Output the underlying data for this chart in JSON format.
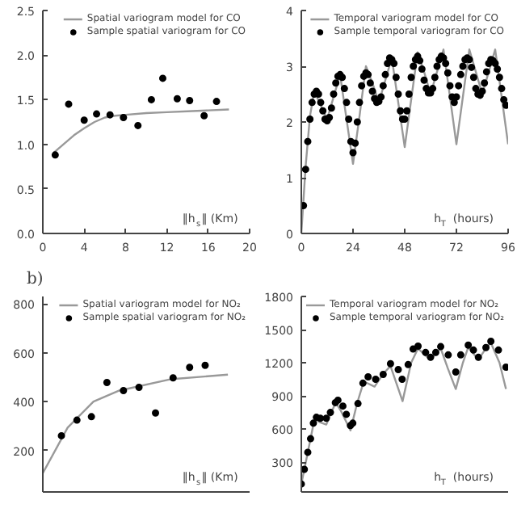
{
  "chart_data": [
    {
      "type": "scatter",
      "xlabel": "‖h$_{s}$‖ (Km)",
      "xlim": [
        0,
        20
      ],
      "xticks": [
        0,
        4,
        8,
        12,
        16,
        20
      ],
      "ylim": [
        0,
        2.5
      ],
      "yticks": [
        {
          "value": 0,
          "label": "0.0"
        },
        0.5,
        {
          "value": 1,
          "label": "1.0"
        },
        1.5,
        {
          "value": 2,
          "label": "2.0"
        },
        2.5
      ],
      "grid": false,
      "legend": "top",
      "marker": "circle",
      "series": [
        {
          "name": "Spatial variogram model for CO",
          "type": "line",
          "marker": "none",
          "color": "#999999",
          "x": [
            1,
            2,
            3,
            4,
            5,
            6,
            7,
            8,
            10,
            12,
            14,
            16,
            18
          ],
          "values": [
            0.9,
            1.0,
            1.1,
            1.18,
            1.25,
            1.3,
            1.32,
            1.33,
            1.35,
            1.36,
            1.37,
            1.38,
            1.39
          ]
        },
        {
          "name": "Sample spatial variogram for CO",
          "color": "#000000",
          "x": [
            1.2,
            2.5,
            4,
            5.2,
            6.5,
            7.8,
            9.2,
            10.5,
            11.6,
            13,
            14.2,
            15.6,
            16.8
          ],
          "values": [
            0.88,
            1.45,
            1.27,
            1.34,
            1.33,
            1.3,
            1.21,
            1.5,
            1.74,
            1.51,
            1.49,
            1.32,
            1.48
          ]
        }
      ]
    },
    {
      "type": "scatter",
      "xlabel": "h$_{T}$ (hours)",
      "xlim": [
        0,
        96
      ],
      "xticks": [
        0,
        24,
        48,
        72,
        96
      ],
      "ylim": [
        0,
        4
      ],
      "yticks": [
        0,
        1,
        2,
        3,
        4
      ],
      "grid": false,
      "legend": "top",
      "marker": "circle",
      "series": [
        {
          "name": "Temporal variogram model for CO",
          "type": "line",
          "marker": "none",
          "color": "#999999",
          "x": [
            0,
            2,
            4,
            6,
            9,
            12,
            15,
            18,
            21,
            24,
            27,
            30,
            33,
            36,
            39,
            42,
            45,
            48,
            51,
            54,
            57,
            60,
            63,
            66,
            69,
            72,
            75,
            78,
            81,
            84,
            87,
            90,
            93,
            96
          ],
          "values": [
            0,
            1.2,
            2.1,
            2.55,
            2.3,
            2.05,
            2.45,
            2.85,
            2.05,
            1.25,
            2.1,
            3.0,
            2.7,
            2.35,
            2.75,
            3.15,
            2.35,
            1.55,
            2.4,
            3.25,
            2.9,
            2.5,
            2.9,
            3.3,
            2.45,
            1.6,
            2.45,
            3.3,
            2.9,
            2.5,
            2.9,
            3.3,
            2.45,
            1.6
          ]
        },
        {
          "name": "Sample temporal variogram for CO",
          "color": "#000000",
          "x": [
            1,
            2,
            3,
            4,
            5,
            6,
            7,
            8,
            9,
            10,
            11,
            12,
            13,
            14,
            15,
            16,
            17,
            18,
            19,
            20,
            21,
            22,
            23,
            24,
            25,
            26,
            27,
            28,
            29,
            30,
            31,
            32,
            33,
            34,
            35,
            36,
            37,
            38,
            39,
            40,
            41,
            42,
            43,
            44,
            45,
            46,
            47,
            48,
            49,
            50,
            51,
            52,
            53,
            54,
            55,
            56,
            57,
            58,
            59,
            60,
            61,
            62,
            63,
            64,
            65,
            66,
            67,
            68,
            69,
            70,
            71,
            72,
            73,
            74,
            75,
            76,
            77,
            78,
            79,
            80,
            81,
            82,
            83,
            84,
            85,
            86,
            87,
            88,
            89,
            90,
            91,
            92,
            93,
            94,
            95
          ],
          "values": [
            0.5,
            1.15,
            1.65,
            2.05,
            2.35,
            2.5,
            2.55,
            2.5,
            2.35,
            2.2,
            2.05,
            2.02,
            2.08,
            2.25,
            2.5,
            2.7,
            2.82,
            2.85,
            2.8,
            2.6,
            2.35,
            2.05,
            1.65,
            1.45,
            1.62,
            2.0,
            2.35,
            2.65,
            2.82,
            2.88,
            2.85,
            2.7,
            2.55,
            2.42,
            2.35,
            2.37,
            2.45,
            2.65,
            2.85,
            3.05,
            3.15,
            3.12,
            3.05,
            2.8,
            2.5,
            2.2,
            2.05,
            2.05,
            2.2,
            2.5,
            2.8,
            3.0,
            3.12,
            3.18,
            3.1,
            2.95,
            2.75,
            2.6,
            2.52,
            2.52,
            2.6,
            2.8,
            3.0,
            3.12,
            3.18,
            3.15,
            3.05,
            2.88,
            2.65,
            2.45,
            2.35,
            2.45,
            2.65,
            2.85,
            3.0,
            3.12,
            3.15,
            3.12,
            2.98,
            2.8,
            2.6,
            2.5,
            2.48,
            2.55,
            2.7,
            2.9,
            3.05,
            3.12,
            3.1,
            3.05,
            2.95,
            2.8,
            2.6,
            2.4,
            2.3
          ]
        }
      ]
    },
    {
      "type": "scatter",
      "annotations": [
        "b)"
      ],
      "xlabel": "‖h$_{s}$‖ (Km)",
      "xlim": [
        0,
        20
      ],
      "ylim": [
        30,
        830
      ],
      "yticks": [
        200,
        400,
        600,
        800
      ],
      "tick_labels": "y",
      "grid": false,
      "legend": "top",
      "marker": "circle",
      "series": [
        {
          "name": "Spatial variogram model for NO₂",
          "type": "line",
          "marker": "none",
          "color": "#999999",
          "x": [
            0,
            2.4,
            4.9,
            7.4,
            12.3,
            17.9
          ],
          "values": [
            107,
            293,
            400,
            445,
            491,
            510
          ]
        },
        {
          "name": "Sample spatial variogram for NO₂",
          "color": "#000000",
          "x": [
            1.8,
            3.3,
            4.7,
            6.2,
            7.8,
            9.3,
            10.9,
            12.6,
            14.2,
            15.7
          ],
          "values": [
            260,
            324,
            338,
            478,
            445,
            458,
            353,
            497,
            540,
            548
          ]
        }
      ]
    },
    {
      "type": "scatter",
      "xlabel": "h$_{T}$ (hours)",
      "xlim": [
        0,
        96
      ],
      "ylim": [
        30,
        1800
      ],
      "yticks": [
        300,
        600,
        900,
        1200,
        1500,
        1800
      ],
      "tick_labels": "y",
      "grid": false,
      "legend": "top",
      "marker": "circle",
      "series": [
        {
          "name": "Temporal variogram model for NO₂",
          "type": "line",
          "marker": "none",
          "color": "#999999",
          "x": [
            0,
            1.4,
            3,
            4.3,
            5.6,
            7,
            8.8,
            11.6,
            13.7,
            16,
            18.5,
            22.8,
            26,
            29,
            34,
            38,
            41.4,
            47,
            51,
            54.2,
            58,
            60,
            64.7,
            68,
            71.7,
            75,
            77.5,
            82.2,
            86,
            88,
            92,
            95
          ],
          "values": [
            102,
            235,
            389,
            512,
            640,
            680,
            660,
            640,
            740,
            840,
            760,
            587,
            840,
            1030,
            984,
            1100,
            1170,
            852,
            1200,
            1330,
            1260,
            1227,
            1330,
            1150,
            962,
            1200,
            1340,
            1227,
            1340,
            1380,
            1200,
            962
          ]
        },
        {
          "name": "Sample temporal variogram for NO₂",
          "color": "#000000",
          "x": [
            0,
            1.4,
            3,
            4.3,
            5.6,
            7,
            8.8,
            11.6,
            13.5,
            15.8,
            17,
            19.3,
            20.9,
            22.8,
            23.9,
            26.3,
            28.6,
            31,
            34.5,
            38,
            41.4,
            45,
            46.8,
            49.6,
            51.9,
            54.2,
            57.7,
            60,
            62.4,
            64.7,
            68.2,
            71.7,
            74,
            77.5,
            79.9,
            82.2,
            85.7,
            88,
            91.5,
            95
          ],
          "values": [
            102,
            235,
            389,
            512,
            653,
            706,
            697,
            697,
            750,
            839,
            861,
            808,
            733,
            631,
            653,
            830,
            1015,
            1072,
            1050,
            1094,
            1191,
            1138,
            1050,
            1183,
            1324,
            1350,
            1293,
            1249,
            1293,
            1346,
            1271,
            1116,
            1271,
            1359,
            1315,
            1249,
            1337,
            1394,
            1315,
            1160
          ]
        }
      ]
    }
  ]
}
